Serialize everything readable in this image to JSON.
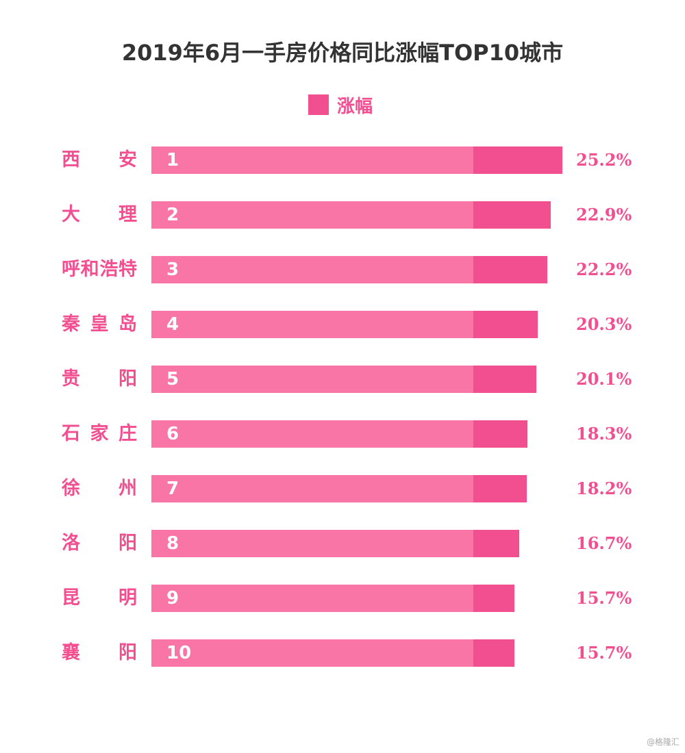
{
  "colors": {
    "bar": "#f875a6",
    "bar_highlight": "#f24f91",
    "label": "#f24f91",
    "title": "#333333"
  },
  "watermark": "@格隆汇",
  "chart_data": {
    "type": "bar",
    "orientation": "horizontal",
    "title": "2019年6月一手房价格同比涨幅TOP10城市",
    "legend": [
      "涨幅"
    ],
    "legend_position": "top",
    "grid": false,
    "categories": [
      "西安",
      "大理",
      "呼和浩特",
      "秦皇岛",
      "贵阳",
      "石家庄",
      "徐州",
      "洛阳",
      "昆明",
      "襄阳"
    ],
    "ranks": [
      "1",
      "2",
      "3",
      "4",
      "5",
      "6",
      "7",
      "8",
      "9",
      "10"
    ],
    "series": [
      {
        "name": "涨幅",
        "values": [
          25.2,
          22.9,
          22.2,
          20.3,
          20.1,
          18.3,
          18.2,
          16.7,
          15.7,
          15.7
        ],
        "labels": [
          "25.2%",
          "22.9%",
          "22.2%",
          "20.3%",
          "20.1%",
          "18.3%",
          "18.2%",
          "16.7%",
          "15.7%",
          "15.7%"
        ]
      }
    ]
  }
}
